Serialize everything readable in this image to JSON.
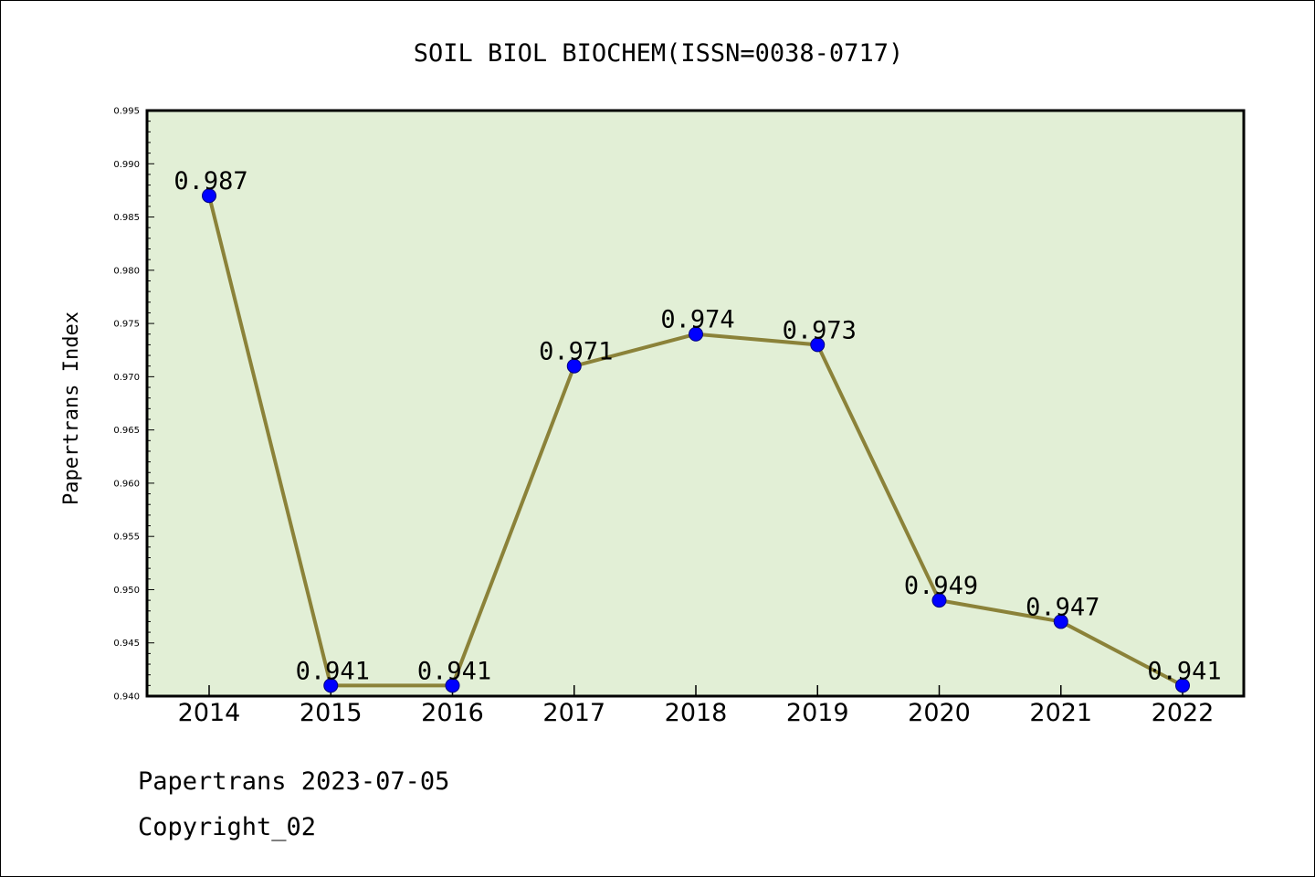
{
  "chart_data": {
    "type": "line",
    "title": "SOIL BIOL BIOCHEM(ISSN=0038-0717)",
    "xlabel": "",
    "ylabel": "Papertrans Index",
    "categories": [
      "2014",
      "2015",
      "2016",
      "2017",
      "2018",
      "2019",
      "2020",
      "2021",
      "2022"
    ],
    "series": [
      {
        "values": [
          0.987,
          0.941,
          0.941,
          0.971,
          0.974,
          0.973,
          0.949,
          0.947,
          0.941
        ],
        "data_labels": [
          "0.987",
          "0.941",
          "0.941",
          "0.971",
          "0.974",
          "0.973",
          "0.949",
          "0.947",
          "0.941"
        ]
      }
    ],
    "ylim": [
      0.94,
      0.995
    ],
    "yticks": [
      0.94,
      0.945,
      0.95,
      0.955,
      0.96,
      0.965,
      0.97,
      0.975,
      0.98,
      0.985,
      0.99,
      0.995
    ],
    "ytick_labels": [
      "0.940",
      "0.945",
      "0.950",
      "0.955",
      "0.960",
      "0.965",
      "0.970",
      "0.975",
      "0.980",
      "0.985",
      "0.990",
      "0.995"
    ],
    "grid": false,
    "legend": "none",
    "colors": {
      "plot_background": "#e2efd6",
      "line": "#8b8239",
      "marker_fill": "#0000ff",
      "marker_edge": "#000080",
      "frame": "#000000"
    }
  },
  "footer": {
    "line1": "Papertrans 2023-07-05",
    "line2": "Copyright_02"
  }
}
